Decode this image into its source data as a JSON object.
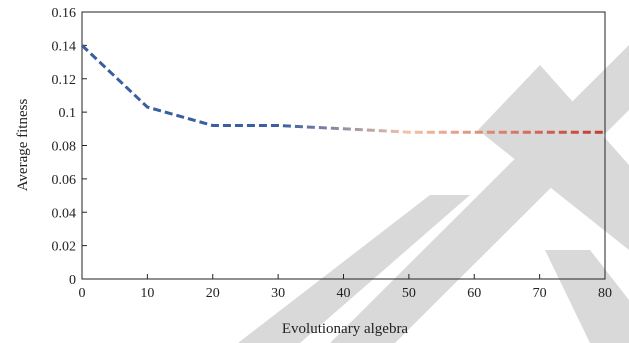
{
  "chart_data": {
    "type": "line",
    "title": "",
    "xlabel": "Evolutionary algebra",
    "ylabel": "Average fitness",
    "xlim": [
      0,
      80
    ],
    "ylim": [
      0,
      0.16
    ],
    "x_ticks": [
      "0",
      "10",
      "20",
      "30",
      "40",
      "50",
      "60",
      "70",
      "80"
    ],
    "y_ticks": [
      "0",
      "0.02",
      "0.04",
      "0.06",
      "0.08",
      "0.1",
      "0.12",
      "0.14",
      "0.16"
    ],
    "grid": false,
    "legend": "none",
    "line_style": "dashed",
    "line_gradient": [
      "#3a5fa0",
      "#3a5fa0",
      "#f2c2a8",
      "#c0392b"
    ],
    "series": [
      {
        "x": [
          0,
          10,
          20,
          30,
          40,
          50,
          60,
          70,
          80
        ],
        "y": [
          0.14,
          0.103,
          0.092,
          0.092,
          0.09,
          0.088,
          0.088,
          0.088,
          0.088
        ]
      }
    ]
  },
  "watermark": {
    "shape": "large-diagonal-R",
    "color": "#d9d9d9"
  }
}
